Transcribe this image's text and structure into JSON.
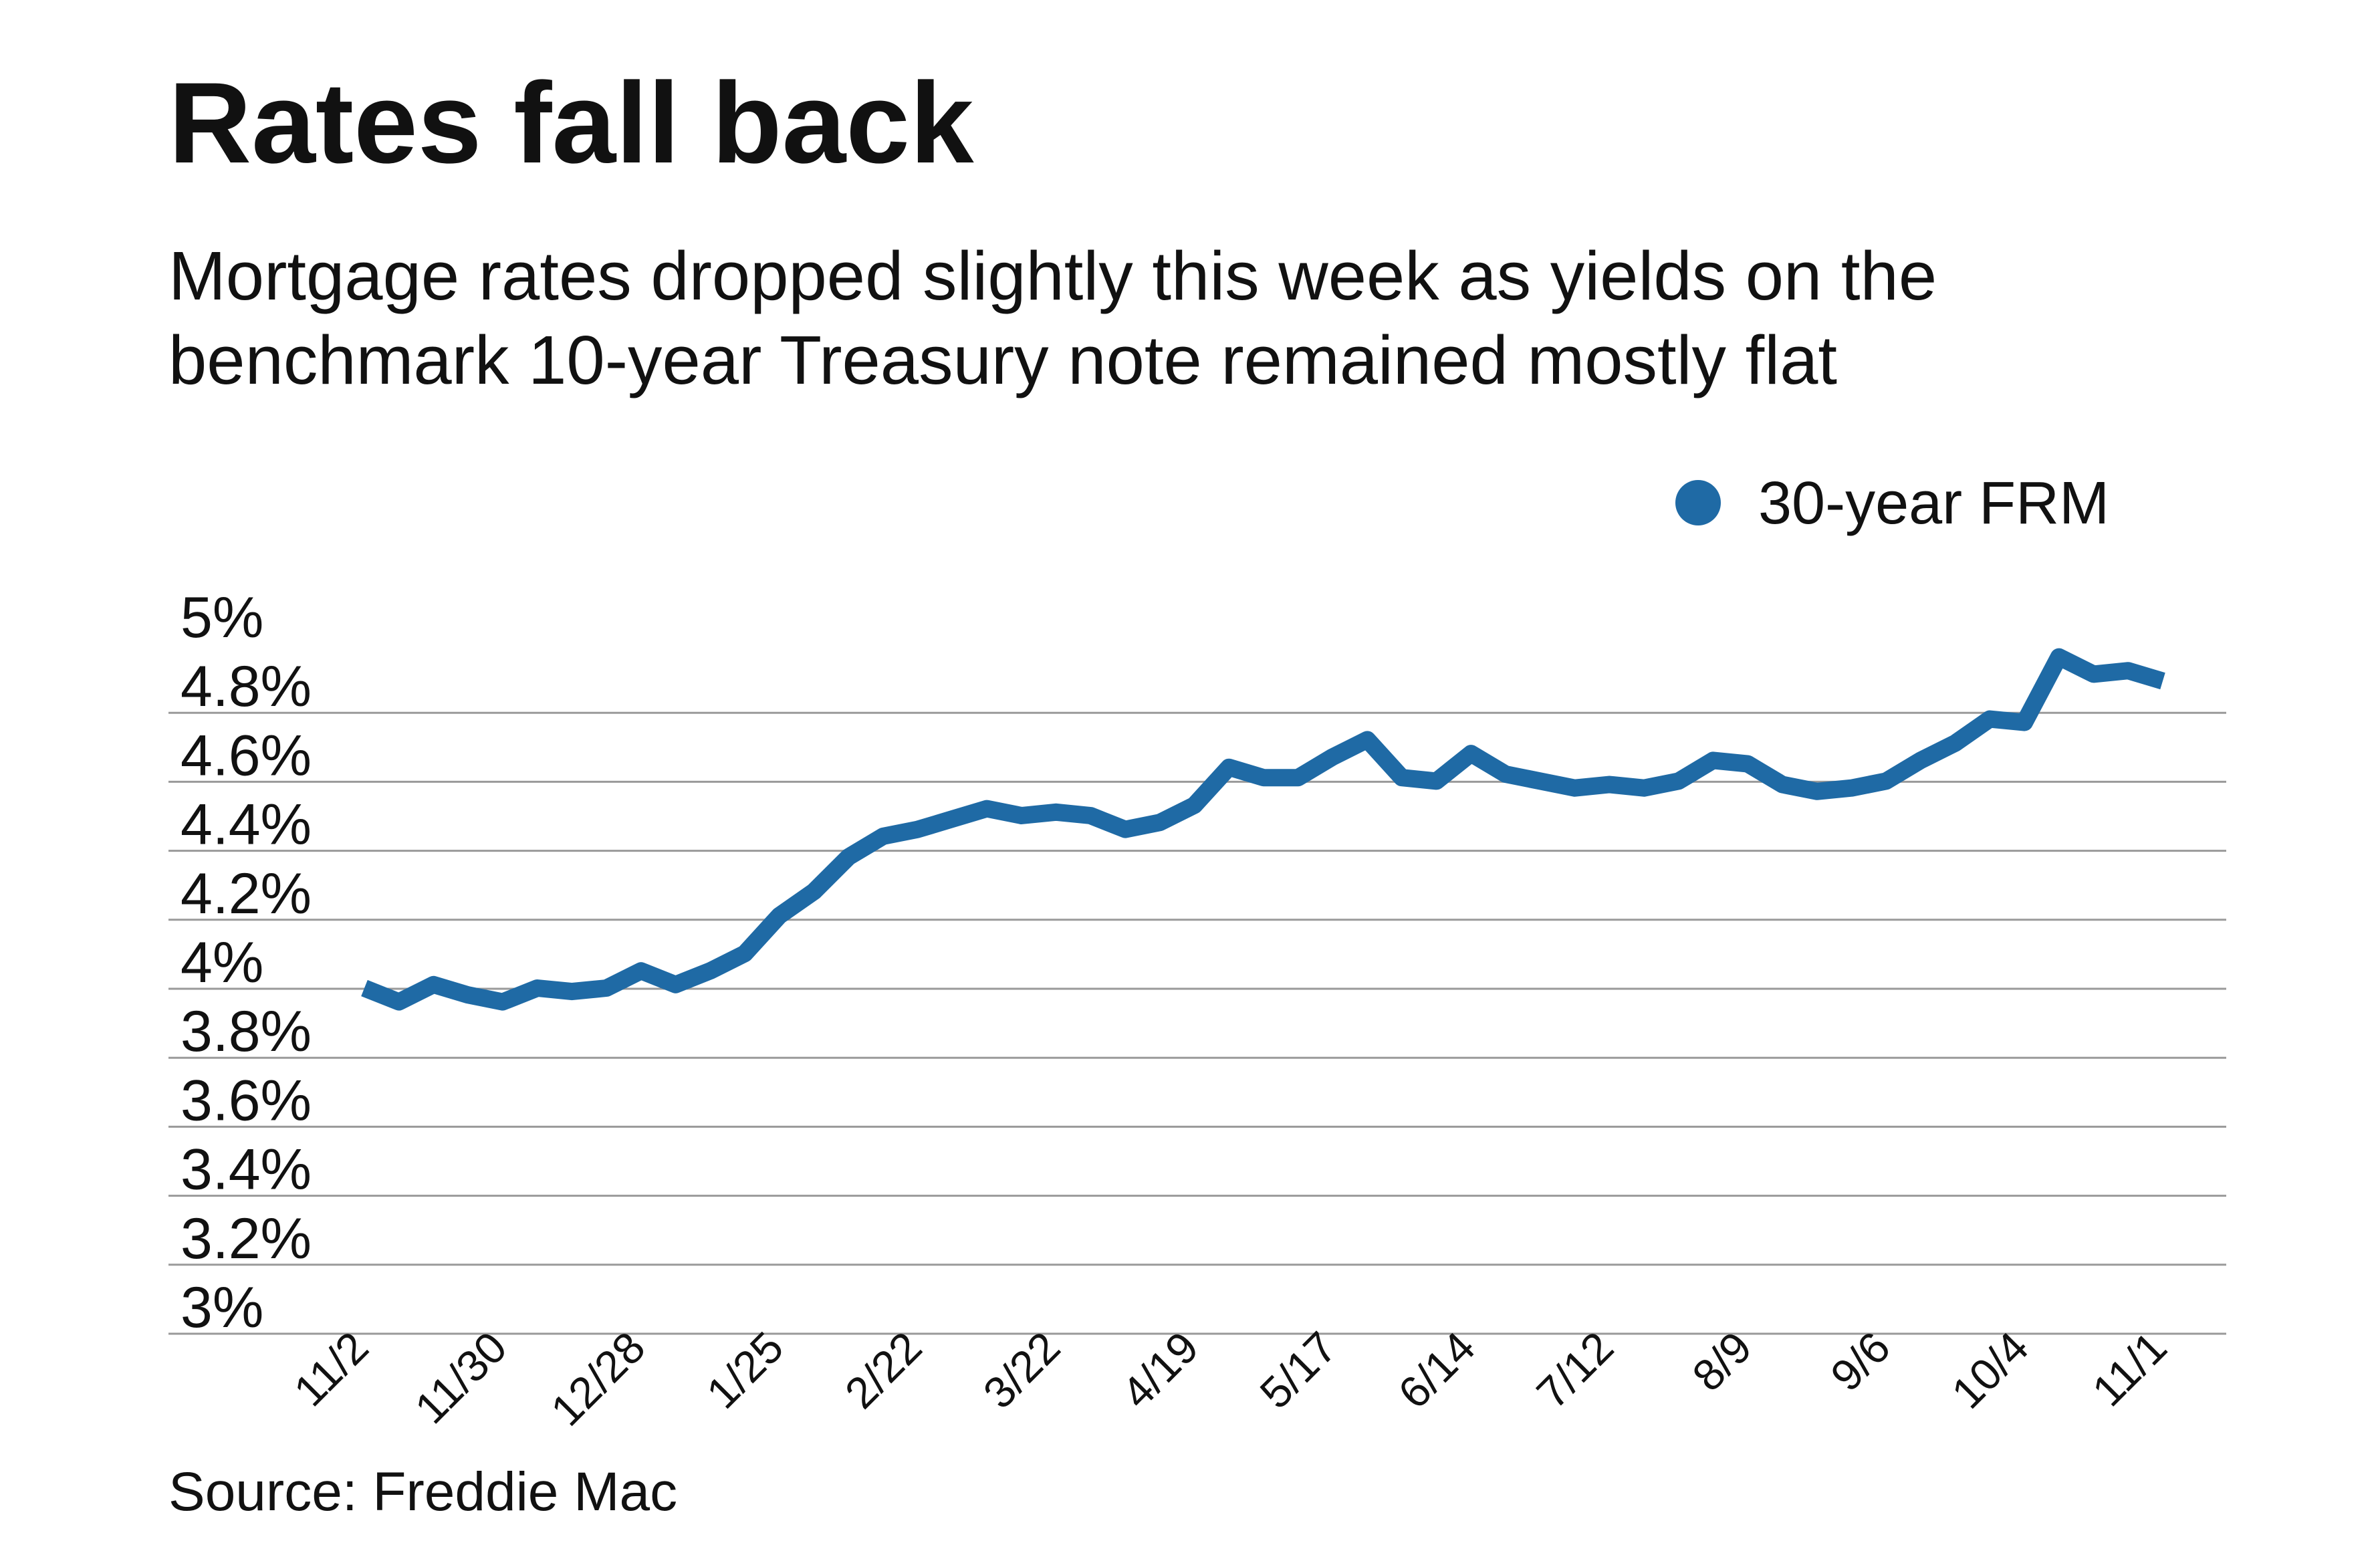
{
  "title": "Rates fall back",
  "subtitle": "Mortgage rates dropped slightly this week as yields on the benchmark 10-year Treasury note remained mostly flat",
  "source": "Source: Freddie Mac",
  "colors": {
    "series": "#1f6aa5",
    "grid": "#9a9a9a",
    "text": "#111111"
  },
  "chart_data": {
    "type": "line",
    "title": "Rates fall back",
    "xlabel": "",
    "ylabel": "",
    "ylim": [
      3,
      5
    ],
    "yticks": [
      "3%",
      "3.2%",
      "3.4%",
      "3.6%",
      "3.8%",
      "4%",
      "4.2%",
      "4.4%",
      "4.6%",
      "4.8%",
      "5%"
    ],
    "ytick_values": [
      3,
      3.2,
      3.4,
      3.6,
      3.8,
      4,
      4.2,
      4.4,
      4.6,
      4.8,
      5
    ],
    "xticks": [
      "11/2",
      "11/30",
      "12/28",
      "1/25",
      "2/22",
      "3/22",
      "4/19",
      "5/17",
      "6/14",
      "7/12",
      "8/9",
      "9/6",
      "10/4",
      "11/1"
    ],
    "grid": true,
    "legend": "top-right",
    "series": [
      {
        "name": "30-year FRM",
        "values": [
          3.94,
          3.9,
          3.95,
          3.92,
          3.9,
          3.94,
          3.93,
          3.94,
          3.99,
          3.95,
          3.99,
          4.04,
          4.15,
          4.22,
          4.32,
          4.38,
          4.4,
          4.43,
          4.46,
          4.44,
          4.45,
          4.44,
          4.4,
          4.42,
          4.47,
          4.58,
          4.55,
          4.55,
          4.61,
          4.66,
          4.55,
          4.54,
          4.62,
          4.56,
          4.54,
          4.52,
          4.53,
          4.52,
          4.54,
          4.6,
          4.59,
          4.53,
          4.51,
          4.52,
          4.54,
          4.6,
          4.65,
          4.72,
          4.71,
          4.9,
          4.85,
          4.86,
          4.83
        ]
      }
    ]
  }
}
